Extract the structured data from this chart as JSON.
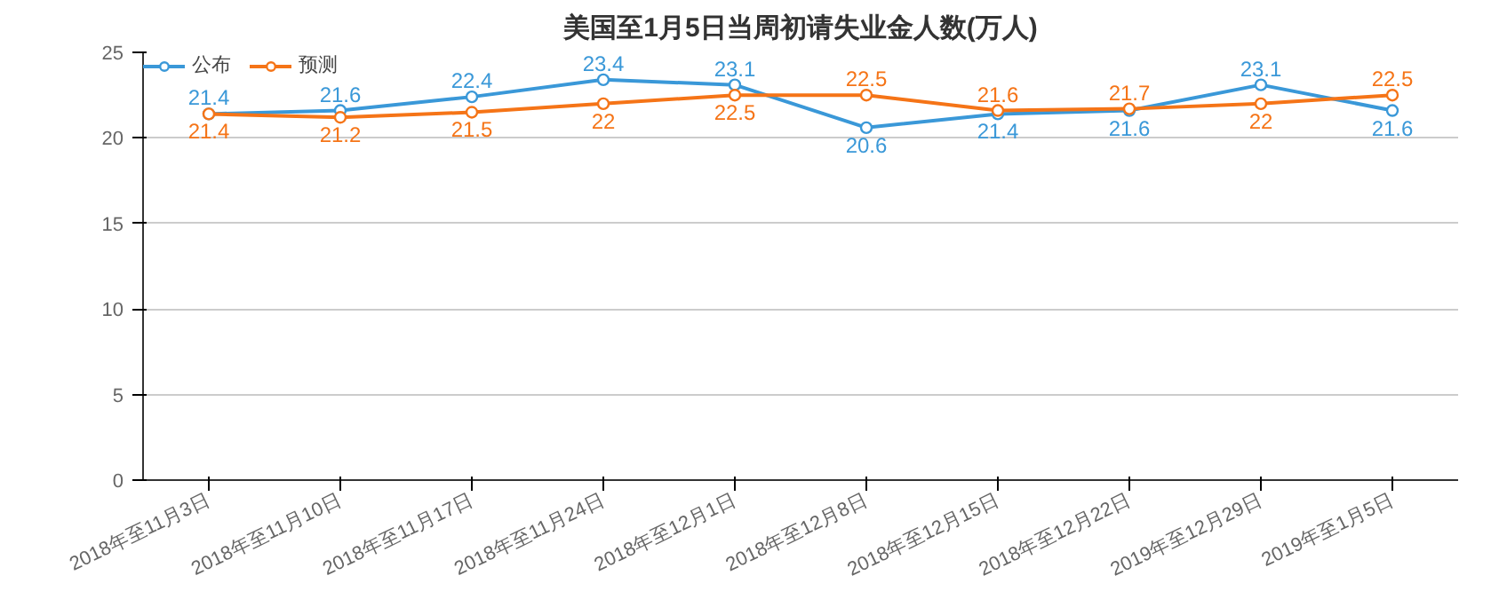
{
  "chart_data": {
    "type": "line",
    "title": "美国至1月5日当周初请失业金人数(万人)",
    "categories": [
      "2018年至11月3日",
      "2018年至11月10日",
      "2018年至11月17日",
      "2018年至11月24日",
      "2018年至12月1日",
      "2018年至12月8日",
      "2018年至12月15日",
      "2018年至12月22日",
      "2019年至12月29日",
      "2019年至1月5日"
    ],
    "series": [
      {
        "name": "公布",
        "color": "#3a98d8",
        "values": [
          21.4,
          21.6,
          22.4,
          23.4,
          23.1,
          20.6,
          21.4,
          21.6,
          23.1,
          21.6
        ]
      },
      {
        "name": "预测",
        "color": "#f57417",
        "values": [
          21.4,
          21.2,
          21.5,
          22,
          22.5,
          22.5,
          21.6,
          21.7,
          22,
          22.5
        ]
      }
    ],
    "ylim": [
      0,
      25
    ],
    "yticks": [
      0,
      5,
      10,
      15,
      20,
      25
    ],
    "grid": "y",
    "legend": "top left",
    "marker": "circle",
    "line_style": "solid",
    "data_labels": true
  }
}
